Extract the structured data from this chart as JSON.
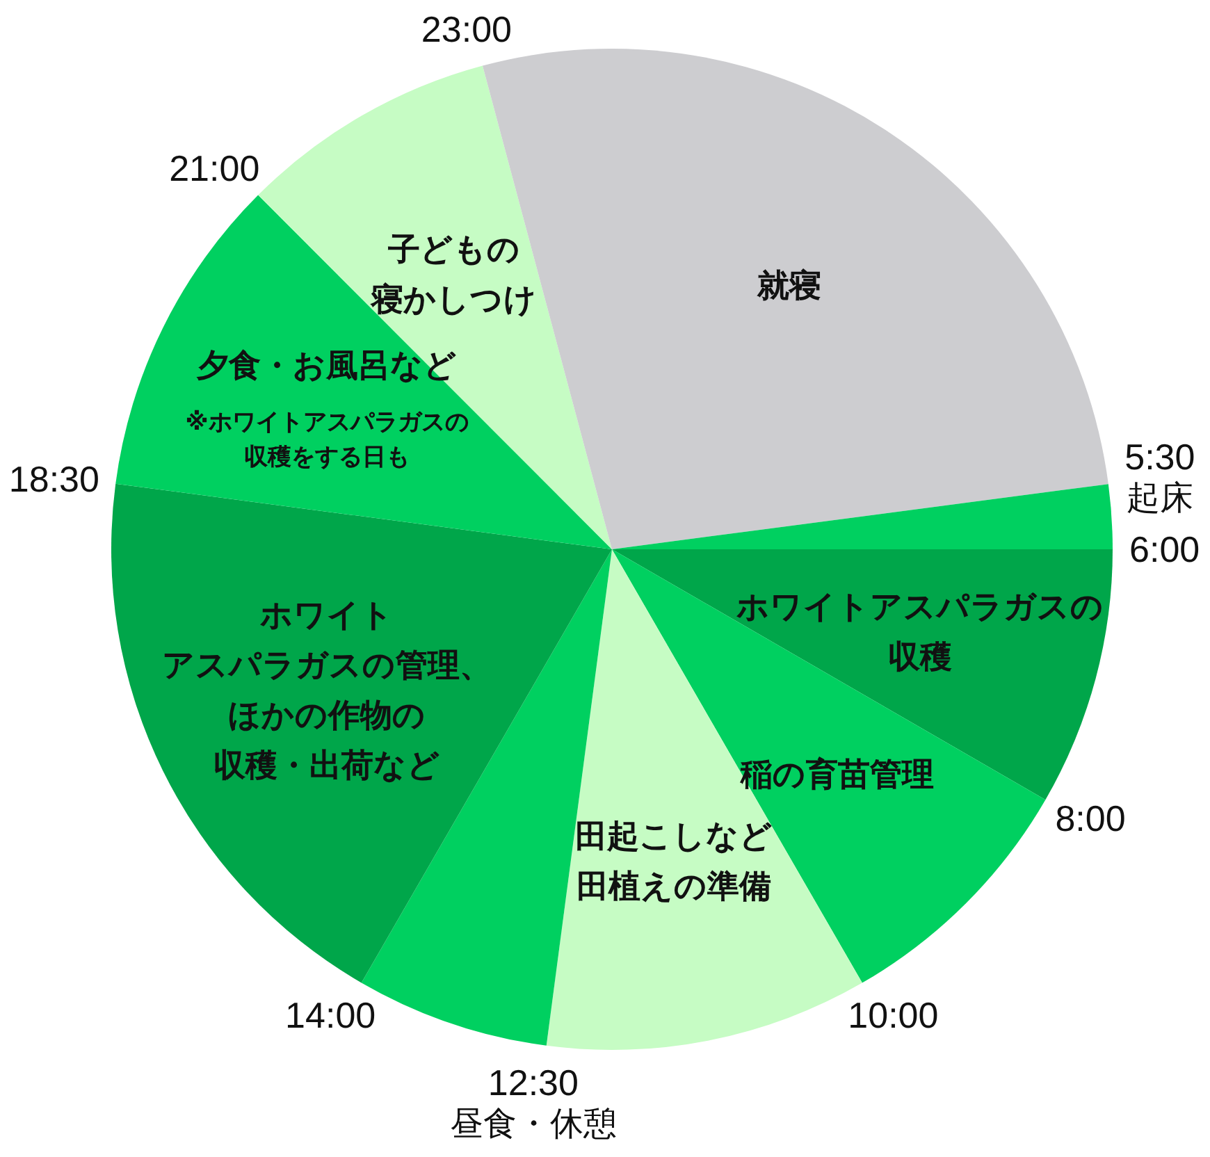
{
  "chart_data": {
    "type": "pie",
    "categories": [
      "ホワイトアスパラガスの収穫",
      "稲の育苗管理",
      "田起こしなど田植えの準備",
      "昼食・休憩",
      "ホワイトアスパラガスの管理、ほかの作物の収穫・出荷など",
      "夕食・お風呂など",
      "子どもの寝かしつけ",
      "就寝",
      "起床"
    ],
    "values": [
      8.34,
      8.33,
      10.42,
      6.25,
      18.75,
      10.42,
      8.33,
      27.08,
      2.08
    ],
    "colors": [
      "#00a64a",
      "#00d060",
      "#c6fcc4",
      "#00d060",
      "#00a64a",
      "#00d060",
      "#c6fcc4",
      "#cdcdd0",
      "#00d060"
    ],
    "annotations": [
      "6:00",
      "8:00",
      "10:00",
      "12:30",
      "14:00",
      "18:30",
      "21:00",
      "23:00",
      "5:30",
      {
        "text": "※ホワイトアスパラガスの収穫をする日も",
        "x": "夕食・お風呂など"
      }
    ]
  }
}
